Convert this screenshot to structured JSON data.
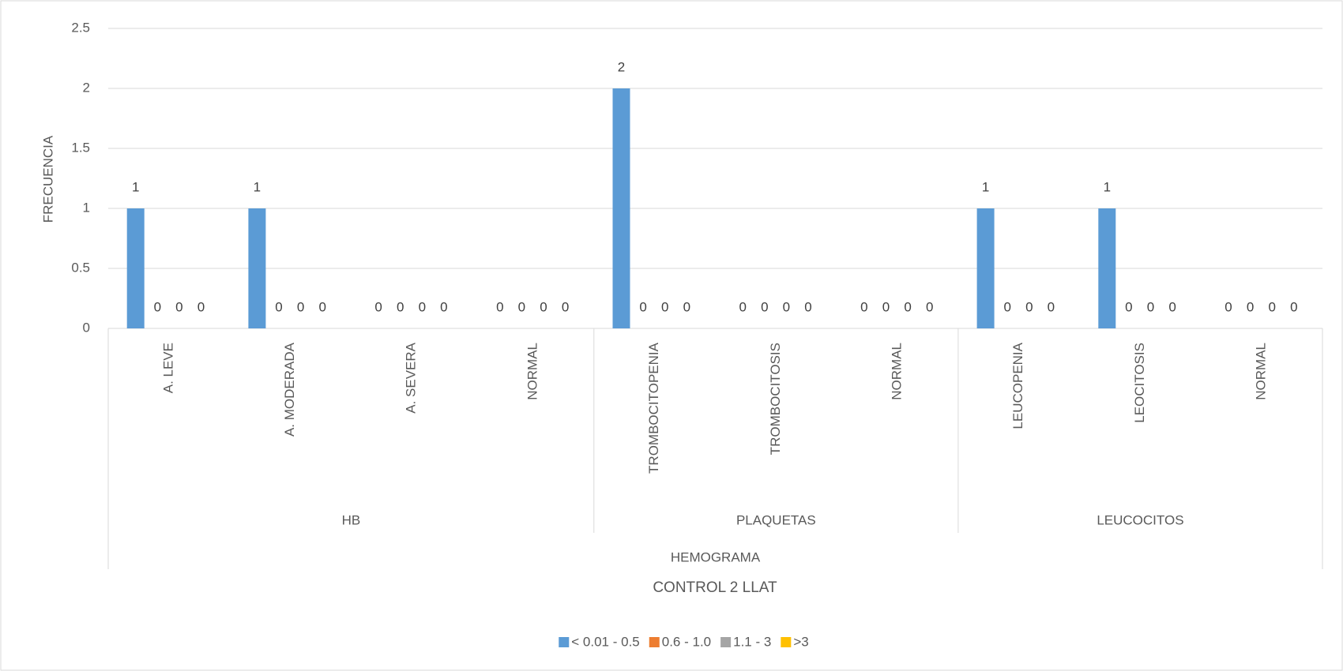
{
  "chart_data": {
    "type": "bar",
    "y_label": "FRECUENCIA",
    "x_label": "CONTROL 2 LLAT",
    "group_title": "HEMOGRAMA",
    "groups": [
      {
        "label": "HB",
        "categories": [
          "A. LEVE",
          "A. MODERADA",
          "A. SEVERA",
          "NORMAL"
        ]
      },
      {
        "label": "PLAQUETAS",
        "categories": [
          "TROMBOCITOPENIA",
          "TROMBOCITOSIS",
          "NORMAL"
        ]
      },
      {
        "label": "LEUCOCITOS",
        "categories": [
          "LEUCOPENIA",
          "LEOCITOSIS",
          "NORMAL"
        ]
      }
    ],
    "series": [
      {
        "name": "< 0.01 - 0.5",
        "color": "#5b9bd5",
        "values": [
          1,
          1,
          0,
          0,
          2,
          0,
          0,
          1,
          1,
          0
        ]
      },
      {
        "name": "0.6 - 1.0",
        "color": "#ed7d31",
        "values": [
          0,
          0,
          0,
          0,
          0,
          0,
          0,
          0,
          0,
          0
        ]
      },
      {
        "name": "1.1 - 3",
        "color": "#a5a5a5",
        "values": [
          0,
          0,
          0,
          0,
          0,
          0,
          0,
          0,
          0,
          0
        ]
      },
      {
        "name": ">3",
        "color": "#ffc000",
        "values": [
          0,
          0,
          0,
          0,
          0,
          0,
          0,
          0,
          0,
          0
        ]
      }
    ],
    "ylim": [
      0,
      2.5
    ],
    "yticks": [
      0,
      0.5,
      1,
      1.5,
      2,
      2.5
    ],
    "grid": true,
    "legend": "bottom"
  }
}
